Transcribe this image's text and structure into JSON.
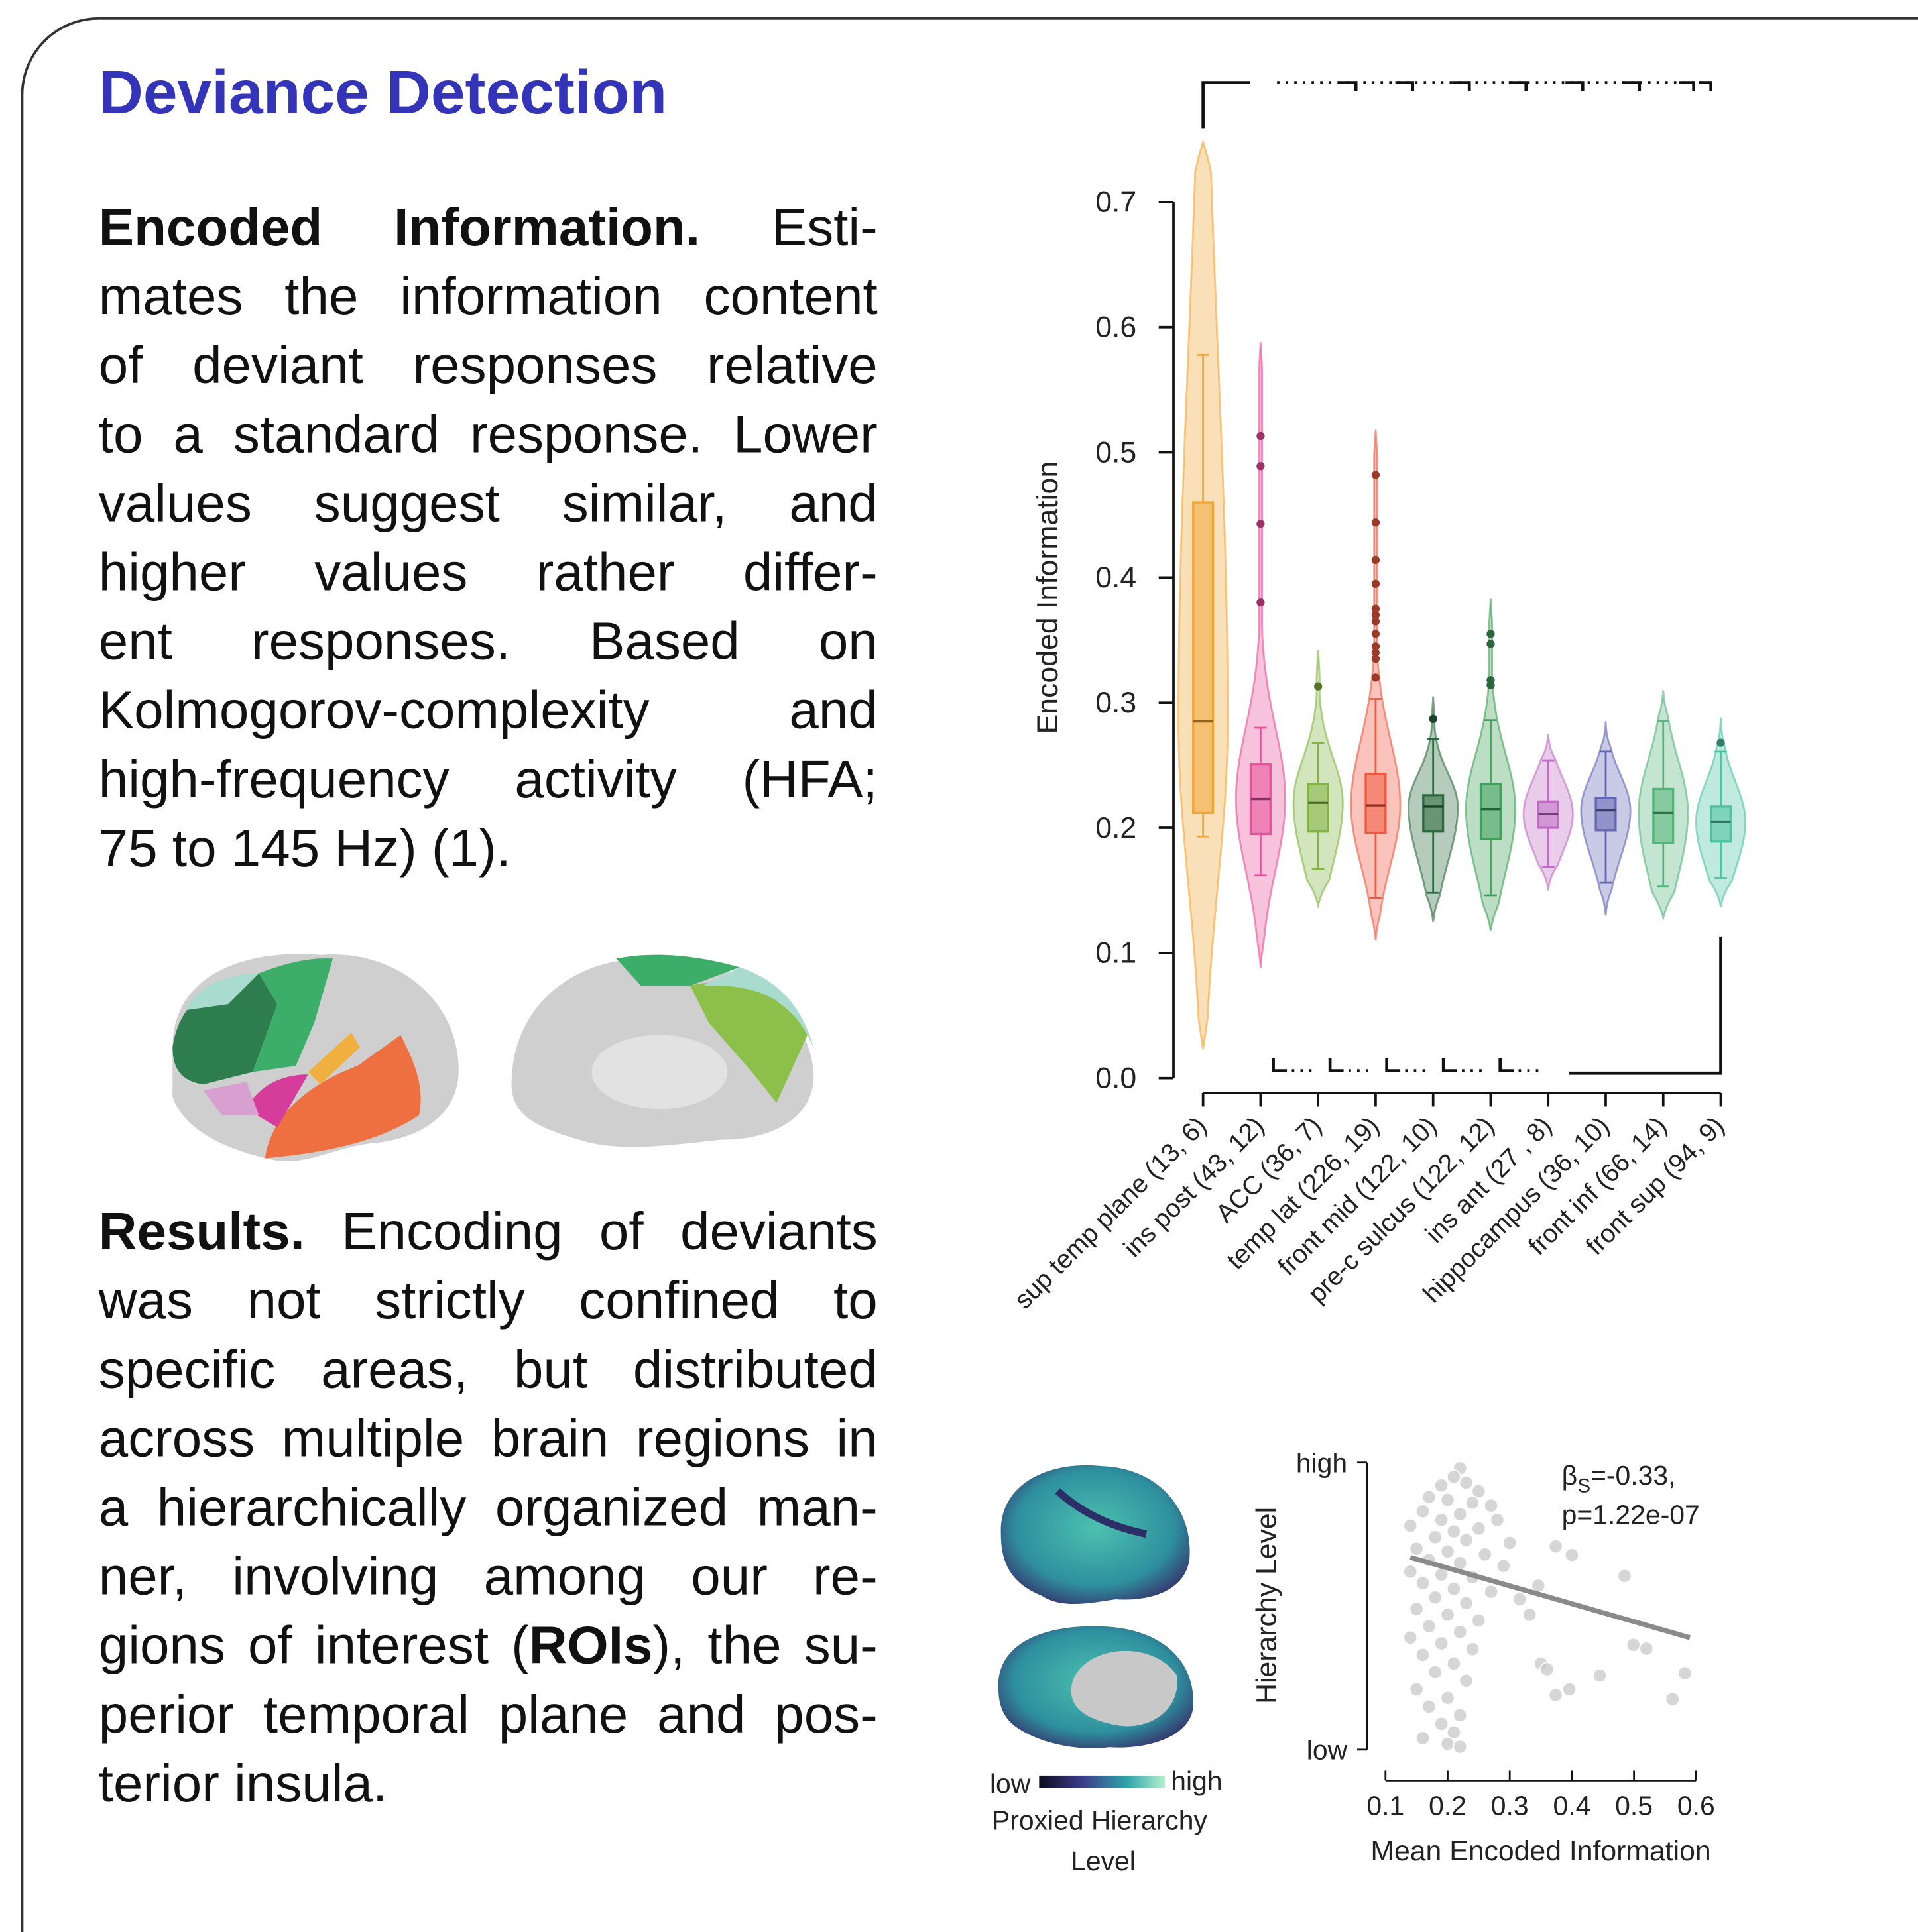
{
  "title": "Deviance Detection",
  "paragraphs": [
    {
      "lead": "Encoded Information.",
      "lines": [
        [
          "Esti-"
        ],
        [
          "mates the information content"
        ],
        [
          "of deviant responses relative"
        ],
        [
          "to a standard response. Lower"
        ],
        [
          "values suggest similar, and"
        ],
        [
          "higher values rather differ-"
        ],
        [
          "ent responses. Based on"
        ],
        [
          "Kolmogorov-complexity and"
        ],
        [
          "high-frequency activity (HFA;"
        ],
        [
          "75 to 145 Hz) (1)."
        ]
      ]
    },
    {
      "lead": "Results.",
      "lines": [
        [
          "Encoding of deviants"
        ],
        [
          "was not strictly confined to"
        ],
        [
          "specific areas, but distributed"
        ],
        [
          "across multiple brain regions in"
        ],
        [
          "a hierarchically organized man-"
        ],
        [
          "ner, involving among our re-"
        ],
        [
          "gions of interest (",
          {
            "text": "ROIs",
            "bold": true
          },
          "), the su-"
        ],
        [
          "perior temporal plane and pos-"
        ],
        [
          "terior insula."
        ]
      ]
    }
  ],
  "brain_colorbar": {
    "low": "low",
    "high": "high",
    "label_lines": [
      "Proxied Hierarchy",
      "Level"
    ]
  },
  "chart_data": [
    {
      "type": "violin",
      "ylabel": "Encoded Information",
      "categories": [
        "sup temp plane (13, 6)",
        "ins post (43, 12)",
        "ACC (36, 7)",
        "temp lat (226, 19)",
        "front mid (122, 10)",
        "pre-c sulcus (122, 12)",
        "ins ant (27 , 8)",
        "hippocampus (36, 10)",
        "front inf (66, 14)",
        "front sup (94, 9)"
      ],
      "colors": [
        "#f0a637",
        "#e8509a",
        "#82b441",
        "#f0573f",
        "#2b6a3d",
        "#3fa05a",
        "#c06cc4",
        "#6466b4",
        "#55b47a",
        "#4cc3a0"
      ],
      "q1": [
        0.212,
        0.195,
        0.197,
        0.196,
        0.197,
        0.191,
        0.2,
        0.198,
        0.188,
        0.189
      ],
      "median": [
        0.285,
        0.223,
        0.22,
        0.218,
        0.217,
        0.215,
        0.211,
        0.214,
        0.212,
        0.205
      ],
      "q3": [
        0.46,
        0.251,
        0.235,
        0.243,
        0.226,
        0.235,
        0.221,
        0.224,
        0.231,
        0.217
      ],
      "whisker_low": [
        0.193,
        0.162,
        0.167,
        0.144,
        0.148,
        0.146,
        0.169,
        0.156,
        0.153,
        0.16
      ],
      "whisker_high": [
        0.578,
        0.28,
        0.268,
        0.303,
        0.271,
        0.286,
        0.254,
        0.261,
        0.285,
        0.261
      ],
      "outliers": [
        [],
        [
          0.513,
          0.489,
          0.443,
          0.38
        ],
        [
          0.313
        ],
        [
          0.482,
          0.444,
          0.414,
          0.395,
          0.375,
          0.37,
          0.365,
          0.355,
          0.345,
          0.34,
          0.335,
          0.32
        ],
        [
          0.287
        ],
        [
          0.355,
          0.347,
          0.318,
          0.314
        ],
        [],
        [],
        [],
        [
          0.268
        ]
      ],
      "violin_min": [
        0.023,
        0.088,
        0.138,
        0.11,
        0.125,
        0.118,
        0.15,
        0.13,
        0.128,
        0.137
      ],
      "violin_max": [
        0.748,
        0.588,
        0.342,
        0.518,
        0.305,
        0.383,
        0.275,
        0.285,
        0.31,
        0.288
      ],
      "ylim": [
        0,
        0.7
      ],
      "yticks": [
        {
          "value": 0,
          "label": "0.0"
        },
        0.1,
        0.2,
        0.3,
        0.4,
        0.5,
        0.6,
        0.7
      ]
    },
    {
      "type": "scatter",
      "xlabel": "Mean Encoded Information",
      "ylabel": "Hierarchy Level",
      "color": "#c8c8c8",
      "x": [
        0.22,
        0.21,
        0.23,
        0.19,
        0.25,
        0.17,
        0.2,
        0.24,
        0.27,
        0.16,
        0.22,
        0.19,
        0.28,
        0.14,
        0.25,
        0.21,
        0.18,
        0.23,
        0.3,
        0.15,
        0.2,
        0.26,
        0.17,
        0.22,
        0.29,
        0.14,
        0.19,
        0.24,
        0.16,
        0.21,
        0.27,
        0.18,
        0.23,
        0.15,
        0.2,
        0.25,
        0.17,
        0.22,
        0.14,
        0.19,
        0.24,
        0.16,
        0.21,
        0.18,
        0.23,
        0.15,
        0.2,
        0.17,
        0.22,
        0.19,
        0.21,
        0.16,
        0.2,
        0.22,
        0.374,
        0.35,
        0.485,
        0.499,
        0.52,
        0.582,
        0.562,
        0.445,
        0.396,
        0.374,
        0.36,
        0.346,
        0.4,
        0.316,
        0.332
      ],
      "y": [
        0.98,
        0.95,
        0.93,
        0.92,
        0.9,
        0.88,
        0.87,
        0.86,
        0.85,
        0.83,
        0.82,
        0.8,
        0.8,
        0.78,
        0.77,
        0.76,
        0.74,
        0.73,
        0.72,
        0.7,
        0.69,
        0.68,
        0.66,
        0.65,
        0.64,
        0.62,
        0.61,
        0.6,
        0.58,
        0.56,
        0.55,
        0.53,
        0.51,
        0.49,
        0.47,
        0.45,
        0.43,
        0.41,
        0.39,
        0.37,
        0.35,
        0.33,
        0.3,
        0.27,
        0.24,
        0.21,
        0.18,
        0.15,
        0.12,
        0.09,
        0.06,
        0.04,
        0.02,
        0.01,
        0.708,
        0.3,
        0.605,
        0.365,
        0.352,
        0.266,
        0.176,
        0.258,
        0.21,
        0.19,
        0.28,
        0.571,
        0.678,
        0.524,
        0.47
      ],
      "fit": {
        "x": [
          0.14,
          0.59
        ],
        "y": [
          0.67,
          0.39
        ],
        "color": "#8a8a8a"
      },
      "annotation": {
        "symbol": "β",
        "subscript": "S",
        "rest": "=-0.33,",
        "line2": "p=1.22e-07"
      },
      "xlim": [
        0.1,
        0.6
      ],
      "xticks": [
        0.1,
        0.2,
        0.3,
        0.4,
        0.5,
        0.6
      ],
      "ylim": [
        0,
        1
      ],
      "yticks": [
        {
          "value": 0,
          "label": "low"
        },
        {
          "value": 1,
          "label": "high"
        }
      ]
    }
  ]
}
